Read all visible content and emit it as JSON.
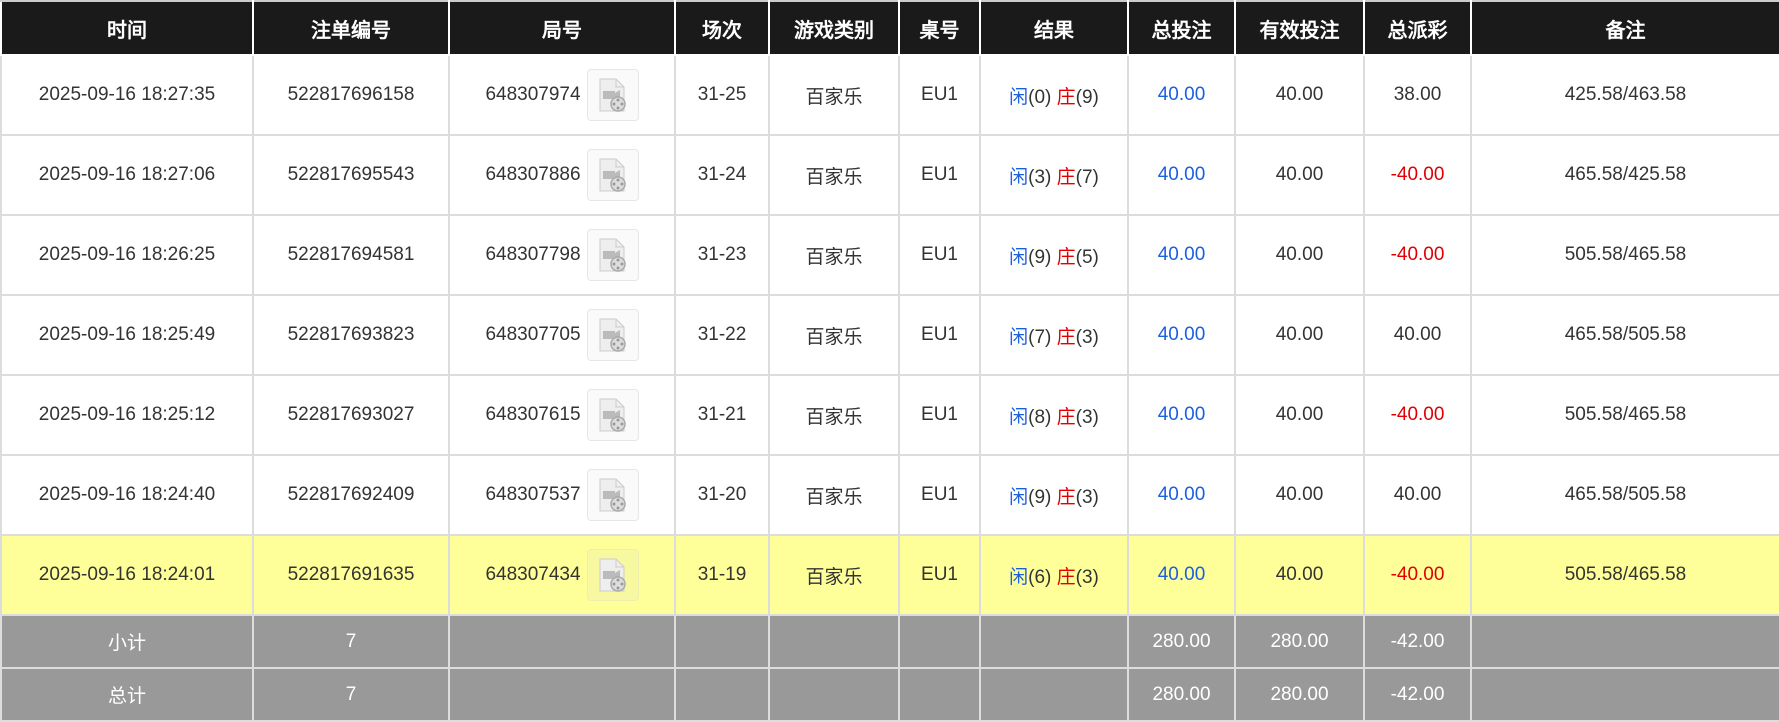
{
  "headers": [
    "时间",
    "注单编号",
    "局号",
    "场次",
    "游戏类别",
    "桌号",
    "结果",
    "总投注",
    "有效投注",
    "总派彩",
    "备注"
  ],
  "colors": {
    "header_bg": "#1a1a1a",
    "highlight_row": "#ffff99",
    "summary_bg": "#999999",
    "blue": "#1a5fe0",
    "red": "#e00000"
  },
  "rows": [
    {
      "time": "2025-09-16 18:27:35",
      "bet_id": "522817696158",
      "round": "648307974",
      "shoe": "31-25",
      "game": "百家乐",
      "table": "EU1",
      "player_label": "闲",
      "player_score": "(0)",
      "banker_label": "庄",
      "banker_score": "(9)",
      "total_bet": "40.00",
      "valid_bet": "40.00",
      "payout": "38.00",
      "payout_negative": false,
      "note": "425.58/463.58",
      "icon": "video-replay-icon",
      "highlighted": false
    },
    {
      "time": "2025-09-16 18:27:06",
      "bet_id": "522817695543",
      "round": "648307886",
      "shoe": "31-24",
      "game": "百家乐",
      "table": "EU1",
      "player_label": "闲",
      "player_score": "(3)",
      "banker_label": "庄",
      "banker_score": "(7)",
      "total_bet": "40.00",
      "valid_bet": "40.00",
      "payout": "-40.00",
      "payout_negative": true,
      "note": "465.58/425.58",
      "icon": "video-replay-icon",
      "highlighted": false
    },
    {
      "time": "2025-09-16 18:26:25",
      "bet_id": "522817694581",
      "round": "648307798",
      "shoe": "31-23",
      "game": "百家乐",
      "table": "EU1",
      "player_label": "闲",
      "player_score": "(9)",
      "banker_label": "庄",
      "banker_score": "(5)",
      "total_bet": "40.00",
      "valid_bet": "40.00",
      "payout": "-40.00",
      "payout_negative": true,
      "note": "505.58/465.58",
      "icon": "video-replay-icon",
      "highlighted": false
    },
    {
      "time": "2025-09-16 18:25:49",
      "bet_id": "522817693823",
      "round": "648307705",
      "shoe": "31-22",
      "game": "百家乐",
      "table": "EU1",
      "player_label": "闲",
      "player_score": "(7)",
      "banker_label": "庄",
      "banker_score": "(3)",
      "total_bet": "40.00",
      "valid_bet": "40.00",
      "payout": "40.00",
      "payout_negative": false,
      "note": "465.58/505.58",
      "icon": "video-replay-icon",
      "highlighted": false
    },
    {
      "time": "2025-09-16 18:25:12",
      "bet_id": "522817693027",
      "round": "648307615",
      "shoe": "31-21",
      "game": "百家乐",
      "table": "EU1",
      "player_label": "闲",
      "player_score": "(8)",
      "banker_label": "庄",
      "banker_score": "(3)",
      "total_bet": "40.00",
      "valid_bet": "40.00",
      "payout": "-40.00",
      "payout_negative": true,
      "note": "505.58/465.58",
      "icon": "video-replay-icon",
      "highlighted": false
    },
    {
      "time": "2025-09-16 18:24:40",
      "bet_id": "522817692409",
      "round": "648307537",
      "shoe": "31-20",
      "game": "百家乐",
      "table": "EU1",
      "player_label": "闲",
      "player_score": "(9)",
      "banker_label": "庄",
      "banker_score": "(3)",
      "total_bet": "40.00",
      "valid_bet": "40.00",
      "payout": "40.00",
      "payout_negative": false,
      "note": "465.58/505.58",
      "icon": "video-replay-icon",
      "highlighted": false
    },
    {
      "time": "2025-09-16 18:24:01",
      "bet_id": "522817691635",
      "round": "648307434",
      "shoe": "31-19",
      "game": "百家乐",
      "table": "EU1",
      "player_label": "闲",
      "player_score": "(6)",
      "banker_label": "庄",
      "banker_score": "(3)",
      "total_bet": "40.00",
      "valid_bet": "40.00",
      "payout": "-40.00",
      "payout_negative": true,
      "note": "505.58/465.58",
      "icon": "video-replay-icon",
      "highlighted": true
    }
  ],
  "summary": [
    {
      "label": "小计",
      "count": "7",
      "total_bet": "280.00",
      "valid_bet": "280.00",
      "payout": "-42.00"
    },
    {
      "label": "总计",
      "count": "7",
      "total_bet": "280.00",
      "valid_bet": "280.00",
      "payout": "-42.00"
    }
  ]
}
